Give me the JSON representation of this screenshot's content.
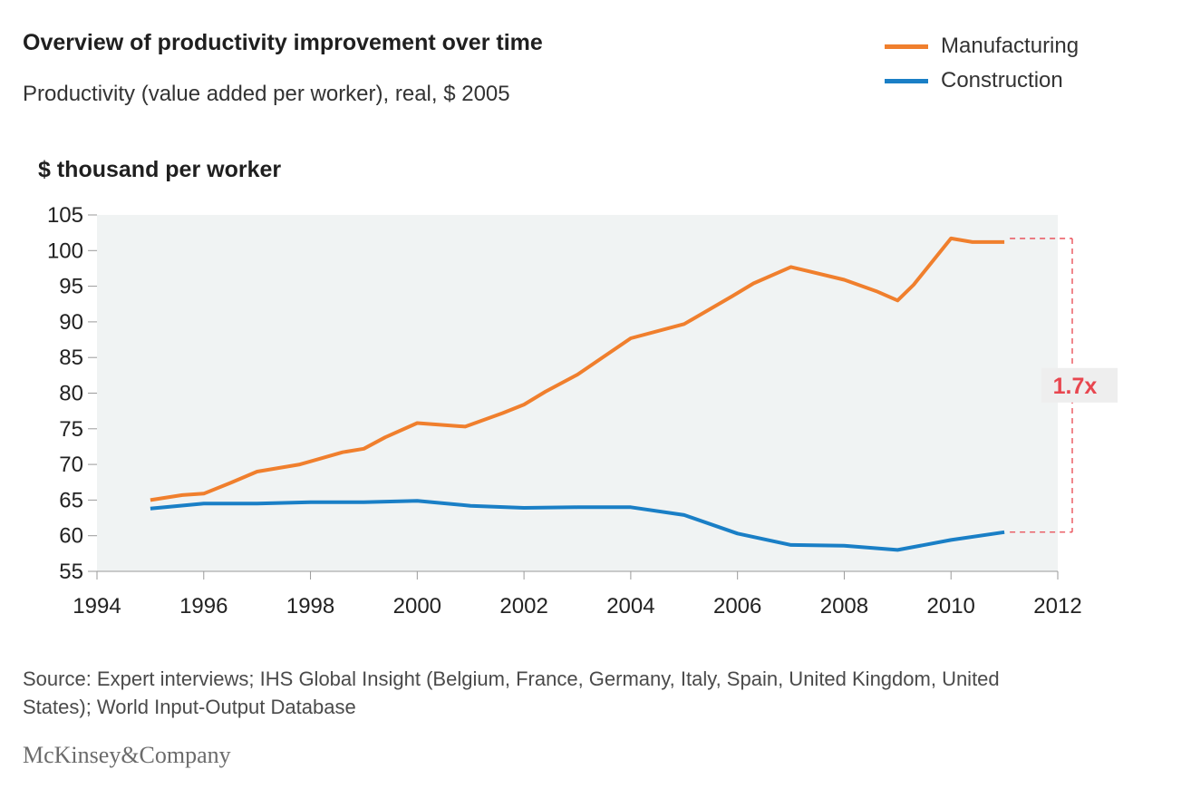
{
  "header": {
    "title": "Overview of productivity improvement over time",
    "subtitle": "Productivity (value added per worker), real, $ 2005"
  },
  "legend": [
    {
      "label": "Manufacturing",
      "color": "#f07f2d"
    },
    {
      "label": "Construction",
      "color": "#1a7fc6"
    }
  ],
  "footer": {
    "source": "Source: Expert interviews; IHS Global Insight (Belgium, France, Germany, Italy, Spain, United Kingdom, United States); World Input-Output Database",
    "brand": "McKinsey&Company"
  },
  "chart_data": {
    "type": "line",
    "title": "Overview of productivity improvement over time",
    "subtitle": "Productivity (value added per worker), real, $ 2005",
    "ylabel": "$ thousand per worker",
    "xlabel": "",
    "xlim": [
      1994,
      2012
    ],
    "ylim": [
      55,
      105
    ],
    "xticks": [
      1994,
      1996,
      1998,
      2000,
      2002,
      2004,
      2006,
      2008,
      2010,
      2012
    ],
    "yticks": [
      55,
      60,
      65,
      70,
      75,
      80,
      85,
      90,
      95,
      100,
      105
    ],
    "grid": false,
    "background_color": "#f0f3f3",
    "legend_position": "top-right",
    "series": [
      {
        "name": "Manufacturing",
        "color": "#f07f2d",
        "points": [
          [
            1995,
            65.0
          ],
          [
            1995.6,
            65.7
          ],
          [
            1996,
            65.9
          ],
          [
            1996.5,
            67.4
          ],
          [
            1997,
            69.0
          ],
          [
            1997.8,
            70.0
          ],
          [
            1998.6,
            71.7
          ],
          [
            1999,
            72.2
          ],
          [
            1999.4,
            73.8
          ],
          [
            2000,
            75.8
          ],
          [
            2000.9,
            75.3
          ],
          [
            2001.6,
            77.2
          ],
          [
            2002,
            78.4
          ],
          [
            2002.4,
            80.2
          ],
          [
            2003,
            82.6
          ],
          [
            2004,
            87.7
          ],
          [
            2005,
            89.7
          ],
          [
            2005.9,
            93.6
          ],
          [
            2006.3,
            95.4
          ],
          [
            2007,
            97.7
          ],
          [
            2008,
            95.9
          ],
          [
            2008.6,
            94.3
          ],
          [
            2009,
            93.0
          ],
          [
            2009.3,
            95.2
          ],
          [
            2010,
            101.7
          ],
          [
            2010.4,
            101.2
          ],
          [
            2011,
            101.2
          ]
        ]
      },
      {
        "name": "Construction",
        "color": "#1a7fc6",
        "points": [
          [
            1995,
            63.8
          ],
          [
            1996,
            64.5
          ],
          [
            1997,
            64.5
          ],
          [
            1998,
            64.7
          ],
          [
            1999,
            64.7
          ],
          [
            2000,
            64.9
          ],
          [
            2001,
            64.2
          ],
          [
            2002,
            63.9
          ],
          [
            2003,
            64.0
          ],
          [
            2004,
            64.0
          ],
          [
            2005,
            62.9
          ],
          [
            2006,
            60.3
          ],
          [
            2007,
            58.7
          ],
          [
            2008,
            58.6
          ],
          [
            2009,
            58.0
          ],
          [
            2010,
            59.4
          ],
          [
            2011,
            60.5
          ]
        ]
      }
    ],
    "annotations": [
      {
        "text": "1.7x",
        "from_value": 101.7,
        "to_value": 60.5,
        "color": "#e8464f"
      }
    ]
  }
}
